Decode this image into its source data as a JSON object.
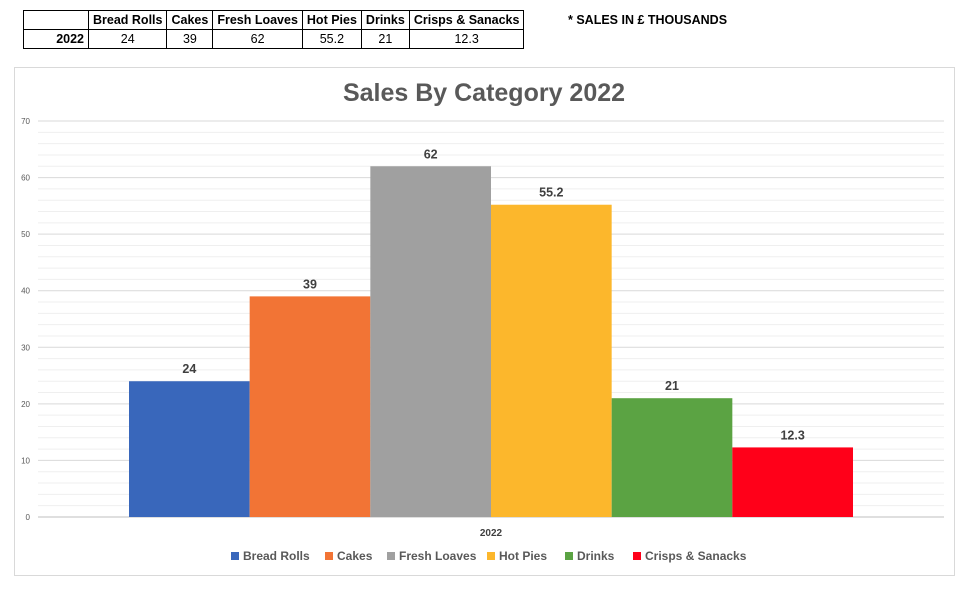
{
  "table": {
    "headers": [
      "Bread Rolls",
      "Cakes",
      "Fresh Loaves",
      "Hot Pies",
      "Drinks",
      "Crisps & Sanacks"
    ],
    "row_label": "2022",
    "values": [
      "24",
      "39",
      "62",
      "55.2",
      "21",
      "12.3"
    ]
  },
  "note": "* SALES IN £ THOUSANDS",
  "chart_data": {
    "type": "bar",
    "title": "Sales By Category 2022",
    "xlabel": "",
    "ylabel": "",
    "categories": [
      "2022"
    ],
    "series": [
      {
        "name": "Bread Rolls",
        "values": [
          24
        ],
        "color": "#3967bb"
      },
      {
        "name": "Cakes",
        "values": [
          39
        ],
        "color": "#f27435"
      },
      {
        "name": "Fresh Loaves",
        "values": [
          62
        ],
        "color": "#a0a0a0"
      },
      {
        "name": "Hot Pies",
        "values": [
          55.2
        ],
        "color": "#fcb72c"
      },
      {
        "name": "Drinks",
        "values": [
          21
        ],
        "color": "#5ba343"
      },
      {
        "name": "Crisps & Sanacks",
        "values": [
          12.3
        ],
        "color": "#ff0019"
      }
    ],
    "ylim": [
      0,
      70
    ],
    "yticks": [
      "0",
      "10",
      "20",
      "30",
      "40",
      "50",
      "60",
      "70"
    ],
    "grid": true,
    "legend_position": "bottom"
  }
}
